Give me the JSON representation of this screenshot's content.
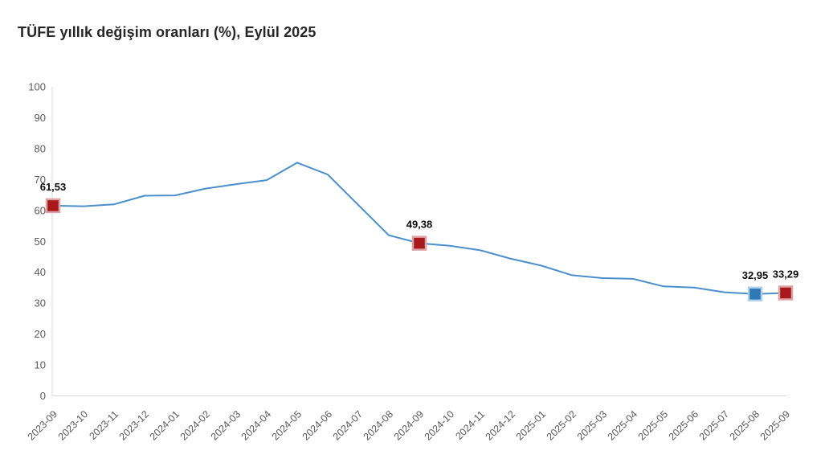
{
  "page": {
    "title": "TÜFE yıllık değişim oranları (%), Eylül 2025"
  },
  "chart_data": {
    "type": "line",
    "title": "TÜFE yıllık değişim oranları (%), Eylül 2025",
    "xlabel": "",
    "ylabel": "",
    "ylim": [
      0,
      100
    ],
    "y_ticks": [
      "0",
      "10",
      "20",
      "30",
      "40",
      "50",
      "60",
      "70",
      "80",
      "90",
      "100"
    ],
    "grid": false,
    "legend_position": "none",
    "x_tick_rotation": -45,
    "categories": [
      "2023-09",
      "2023-10",
      "2023-11",
      "2023-12",
      "2024-01",
      "2024-02",
      "2024-03",
      "2024-04",
      "2024-05",
      "2024-06",
      "2024-07",
      "2024-08",
      "2024-09",
      "2024-10",
      "2024-11",
      "2024-12",
      "2025-01",
      "2025-02",
      "2025-03",
      "2025-04",
      "2025-05",
      "2025-06",
      "2025-07",
      "2025-08",
      "2025-09"
    ],
    "values": [
      61.53,
      61.36,
      61.98,
      64.77,
      64.86,
      67.07,
      68.5,
      69.8,
      75.45,
      71.6,
      61.78,
      51.97,
      49.38,
      48.58,
      47.09,
      44.38,
      42.12,
      39.05,
      38.1,
      37.86,
      35.41,
      35.05,
      33.52,
      32.95,
      33.29
    ],
    "line_color": "#4b8fcc",
    "annotations": [
      {
        "index": 0,
        "category": "2023-09",
        "value": 61.53,
        "label": "61,53",
        "marker_color": "#a8191d",
        "marker_border": "#dfa2a4"
      },
      {
        "index": 12,
        "category": "2024-09",
        "value": 49.38,
        "label": "49,38",
        "marker_color": "#a8191d",
        "marker_border": "#dfa2a4"
      },
      {
        "index": 23,
        "category": "2025-08",
        "value": 32.95,
        "label": "32,95",
        "marker_color": "#2e78b5",
        "marker_border": "#aed0ea"
      },
      {
        "index": 24,
        "category": "2025-09",
        "value": 33.29,
        "label": "33,29",
        "marker_color": "#a8191d",
        "marker_border": "#dfa2a4"
      }
    ],
    "colors": {
      "axis": "#d8d8d8",
      "tick_label": "#595959",
      "title": "#262626",
      "data_label": "#0a0a0a"
    }
  }
}
